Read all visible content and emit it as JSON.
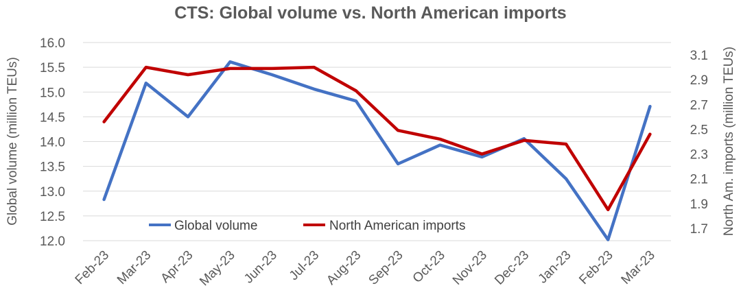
{
  "chart_data": {
    "type": "line",
    "title": "CTS: Global volume vs. North American imports",
    "categories": [
      "Feb-23",
      "Mar-23",
      "Apr-23",
      "May-23",
      "Jun-23",
      "Jul-23",
      "Aug-23",
      "Sep-23",
      "Oct-23",
      "Nov-23",
      "Dec-23",
      "Jan-23",
      "Feb-23",
      "Mar-23"
    ],
    "y_left": {
      "label": "Global volume (million TEUs)",
      "ticks": [
        "12.0",
        "12.5",
        "13.0",
        "13.5",
        "14.0",
        "14.5",
        "15.0",
        "15.5",
        "16.0"
      ],
      "ylim": [
        12.0,
        16.0
      ]
    },
    "y_right": {
      "label": "North Am. imports (million TEUs)",
      "ticks": [
        "1.7",
        "1.9",
        "2.1",
        "2.3",
        "2.5",
        "2.7",
        "2.9",
        "3.1"
      ],
      "ylim": [
        1.6,
        3.2
      ]
    },
    "series": [
      {
        "name": "Global volume",
        "axis": "left",
        "color": "#4472C4",
        "values": [
          12.83,
          15.18,
          14.5,
          15.61,
          15.35,
          15.06,
          14.82,
          13.55,
          13.93,
          13.69,
          14.06,
          13.25,
          12.02,
          14.71
        ]
      },
      {
        "name": "North American imports",
        "axis": "right",
        "color": "#C00000",
        "values": [
          2.56,
          3.0,
          2.94,
          2.99,
          2.99,
          3.0,
          2.81,
          2.49,
          2.42,
          2.3,
          2.41,
          2.38,
          1.85,
          2.46
        ]
      }
    ],
    "grid": true,
    "legend": "lower-center"
  }
}
